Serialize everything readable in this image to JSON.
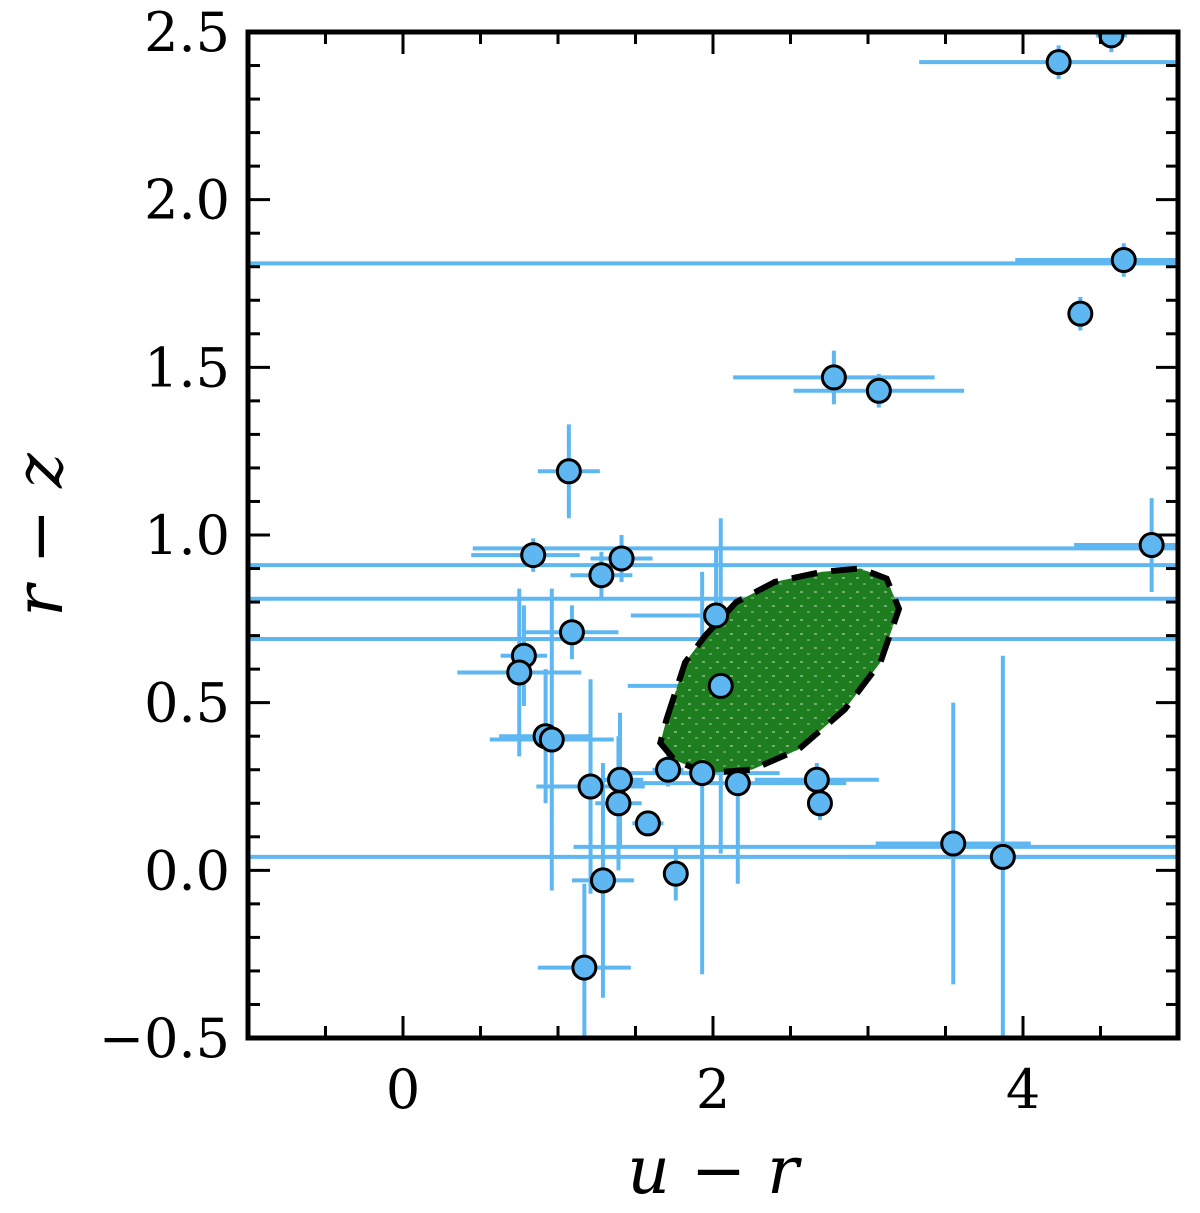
{
  "chart_data": {
    "type": "scatter",
    "xlabel": "u − r",
    "ylabel": "r − z",
    "xlim": [
      -1.0,
      5.0
    ],
    "ylim": [
      -0.5,
      2.5
    ],
    "xticks": [
      0,
      2,
      4
    ],
    "xtick_labels": [
      "0",
      "2",
      "4"
    ],
    "yticks": [
      -0.5,
      0.0,
      0.5,
      1.0,
      1.5,
      2.0,
      2.5
    ],
    "ytick_labels": [
      "−0.5",
      "0.0",
      "0.5",
      "1.0",
      "1.5",
      "2.0",
      "2.5"
    ],
    "grid": false,
    "colors": {
      "points": "#5eb7f0",
      "errorbars": "#5eb7f0",
      "point_edge": "#000000",
      "region_fill": "#1e7d1e",
      "contour": "#000000"
    },
    "points": [
      {
        "x": 1.07,
        "y": 1.19,
        "xerr": [
          0.2,
          0.2
        ],
        "yerr": [
          0.14,
          0.14
        ]
      },
      {
        "x": 0.84,
        "y": 0.94,
        "xerr": [
          0.4,
          0.3
        ],
        "yerr": [
          0.05,
          0.05
        ]
      },
      {
        "x": 1.28,
        "y": 0.88,
        "xerr": [
          0.2,
          0.2
        ],
        "yerr": [
          0.07,
          0.07
        ]
      },
      {
        "x": 1.41,
        "y": 0.93,
        "xerr": [
          0.2,
          0.2
        ],
        "yerr": [
          0.07,
          0.07
        ]
      },
      {
        "x": 1.09,
        "y": 0.71,
        "xerr": [
          0.3,
          0.3
        ],
        "yerr": [
          0.08,
          0.08
        ]
      },
      {
        "x": 0.78,
        "y": 0.64,
        "xerr": [
          0.15,
          0.15
        ],
        "yerr": [
          0.15,
          0.15
        ]
      },
      {
        "x": 0.75,
        "y": 0.59,
        "xerr": [
          0.4,
          0.4
        ],
        "yerr": [
          0.25,
          0.25
        ]
      },
      {
        "x": 0.92,
        "y": 0.4,
        "xerr": [
          0.3,
          0.3
        ],
        "yerr": [
          0.2,
          0.2
        ]
      },
      {
        "x": 0.96,
        "y": 0.39,
        "xerr": [
          0.4,
          0.4
        ],
        "yerr": [
          0.45,
          0.45
        ]
      },
      {
        "x": 1.21,
        "y": 0.25,
        "xerr": [
          0.35,
          0.35
        ],
        "yerr": [
          0.32,
          0.32
        ]
      },
      {
        "x": 1.4,
        "y": 0.27,
        "xerr": [
          0.15,
          0.15
        ],
        "yerr": [
          0.2,
          0.2
        ]
      },
      {
        "x": 1.39,
        "y": 0.2,
        "xerr": [
          0.15,
          0.15
        ],
        "yerr": [
          0.2,
          0.2
        ]
      },
      {
        "x": 1.58,
        "y": 0.14,
        "xerr": [
          0.1,
          0.1
        ],
        "yerr": [
          0.03,
          0.03
        ]
      },
      {
        "x": 1.29,
        "y": -0.03,
        "xerr": [
          0.2,
          0.2
        ],
        "yerr": [
          0.35,
          0.35
        ]
      },
      {
        "x": 1.17,
        "y": -0.29,
        "xerr": [
          0.3,
          0.3
        ],
        "yerr": [
          0.25,
          0.25
        ]
      },
      {
        "x": 1.76,
        "y": -0.01,
        "xerr": [
          0.05,
          0.05
        ],
        "yerr": [
          0.08,
          0.08
        ]
      },
      {
        "x": 1.71,
        "y": 0.3,
        "xerr": [
          0.1,
          0.1
        ],
        "yerr": [
          0.05,
          0.05
        ]
      },
      {
        "x": 1.93,
        "y": 0.29,
        "xerr": [
          0.5,
          0.5
        ],
        "yerr": [
          0.6,
          0.6
        ]
      },
      {
        "x": 2.16,
        "y": 0.26,
        "xerr": [
          0.7,
          0.7
        ],
        "yerr": [
          0.3,
          0.3
        ]
      },
      {
        "x": 2.02,
        "y": 0.76,
        "xerr": [
          0.55,
          0.55
        ],
        "yerr": [
          0.2,
          0.2
        ]
      },
      {
        "x": 2.05,
        "y": 0.55,
        "xerr": [
          0.6,
          0.6
        ],
        "yerr": [
          0.5,
          0.5
        ]
      },
      {
        "x": 2.67,
        "y": 0.27,
        "xerr": [
          0.4,
          0.4
        ],
        "yerr": [
          0.05,
          0.05
        ]
      },
      {
        "x": 2.69,
        "y": 0.2,
        "xerr": [
          0.05,
          0.05
        ],
        "yerr": [
          0.05,
          0.05
        ]
      },
      {
        "x": 2.78,
        "y": 1.47,
        "xerr": [
          0.65,
          0.65
        ],
        "yerr": [
          0.08,
          0.08
        ]
      },
      {
        "x": 3.07,
        "y": 1.43,
        "xerr": [
          0.55,
          0.55
        ],
        "yerr": [
          0.05,
          0.05
        ]
      },
      {
        "x": 3.55,
        "y": 0.08,
        "xerr": [
          0.5,
          0.5
        ],
        "yerr": [
          0.42,
          0.42
        ]
      },
      {
        "x": 3.87,
        "y": 0.04,
        "xerr": [
          1.0,
          1.0
        ],
        "yerr": [
          0.6,
          0.6
        ]
      },
      {
        "x": 4.23,
        "y": 2.41,
        "xerr": [
          0.9,
          0.9
        ],
        "yerr": [
          0.05,
          0.05
        ]
      },
      {
        "x": 4.57,
        "y": 2.49,
        "xerr": [
          0.1,
          0.1
        ],
        "yerr": [
          0.05,
          0.05
        ]
      },
      {
        "x": 4.37,
        "y": 1.66,
        "xerr": [
          0.05,
          0.05
        ],
        "yerr": [
          0.05,
          0.05
        ]
      },
      {
        "x": 4.65,
        "y": 1.82,
        "xerr": [
          0.7,
          0.7
        ],
        "yerr": [
          0.05,
          0.05
        ]
      },
      {
        "x": 4.83,
        "y": 0.97,
        "xerr": [
          0.5,
          0.5
        ],
        "yerr": [
          0.14,
          0.14
        ]
      }
    ],
    "long_horizontal_errorbars": [
      {
        "y": 1.81,
        "x_from": -1.0,
        "x_to": 5.0
      },
      {
        "y": 0.91,
        "x_from": -1.0,
        "x_to": 5.0
      },
      {
        "y": 0.81,
        "x_from": -1.0,
        "x_to": 5.0
      },
      {
        "y": 0.69,
        "x_from": -1.0,
        "x_to": 5.0
      },
      {
        "y": 0.96,
        "x_from": 0.45,
        "x_to": 5.0
      },
      {
        "y": 0.04,
        "x_from": -1.0,
        "x_to": 5.0
      },
      {
        "y": 0.07,
        "x_from": 1.1,
        "x_to": 5.0
      }
    ],
    "region_contour": [
      [
        1.7,
        0.45
      ],
      [
        1.82,
        0.62
      ],
      [
        1.95,
        0.7
      ],
      [
        2.15,
        0.8
      ],
      [
        2.4,
        0.86
      ],
      [
        2.7,
        0.89
      ],
      [
        2.95,
        0.9
      ],
      [
        3.12,
        0.87
      ],
      [
        3.2,
        0.78
      ],
      [
        3.08,
        0.62
      ],
      [
        2.85,
        0.48
      ],
      [
        2.55,
        0.36
      ],
      [
        2.25,
        0.3
      ],
      [
        1.95,
        0.29
      ],
      [
        1.75,
        0.33
      ],
      [
        1.66,
        0.38
      ]
    ]
  }
}
